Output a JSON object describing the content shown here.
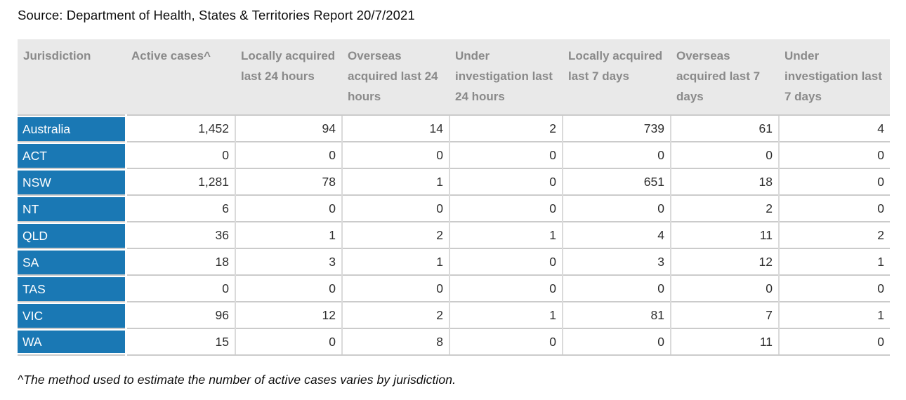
{
  "source_line": "Source: Department of Health, States & Territories Report 20/7/2021",
  "footnote": "^The method used to estimate the number of active cases varies by jurisdiction.",
  "colors": {
    "jurisdiction_cell_bg": "#1a78b4",
    "jurisdiction_cell_text": "#ffffff",
    "header_bg": "#e9e9e9",
    "header_text": "#8a8a8a",
    "row_border": "#cbcbcb",
    "value_text": "#2e2e2e"
  },
  "chart_data": {
    "type": "table",
    "title": "Source: Department of Health, States & Territories Report 20/7/2021",
    "columns": [
      "Jurisdiction",
      "Active cases^",
      "Locally acquired last 24 hours",
      "Overseas acquired last 24 hours",
      "Under investigation last 24 hours",
      "Locally acquired last 7 days",
      "Overseas acquired last 7 days",
      "Under investigation last 7 days"
    ],
    "rows": [
      {
        "jurisdiction": "Australia",
        "values": [
          "1,452",
          "94",
          "14",
          "2",
          "739",
          "61",
          "4"
        ]
      },
      {
        "jurisdiction": "ACT",
        "values": [
          "0",
          "0",
          "0",
          "0",
          "0",
          "0",
          "0"
        ]
      },
      {
        "jurisdiction": "NSW",
        "values": [
          "1,281",
          "78",
          "1",
          "0",
          "651",
          "18",
          "0"
        ]
      },
      {
        "jurisdiction": "NT",
        "values": [
          "6",
          "0",
          "0",
          "0",
          "0",
          "2",
          "0"
        ]
      },
      {
        "jurisdiction": "QLD",
        "values": [
          "36",
          "1",
          "2",
          "1",
          "4",
          "11",
          "2"
        ]
      },
      {
        "jurisdiction": "SA",
        "values": [
          "18",
          "3",
          "1",
          "0",
          "3",
          "12",
          "1"
        ]
      },
      {
        "jurisdiction": "TAS",
        "values": [
          "0",
          "0",
          "0",
          "0",
          "0",
          "0",
          "0"
        ]
      },
      {
        "jurisdiction": "VIC",
        "values": [
          "96",
          "12",
          "2",
          "1",
          "81",
          "7",
          "1"
        ]
      },
      {
        "jurisdiction": "WA",
        "values": [
          "15",
          "0",
          "8",
          "0",
          "0",
          "11",
          "0"
        ]
      }
    ],
    "footnote": "^The method used to estimate the number of active cases varies by jurisdiction."
  }
}
